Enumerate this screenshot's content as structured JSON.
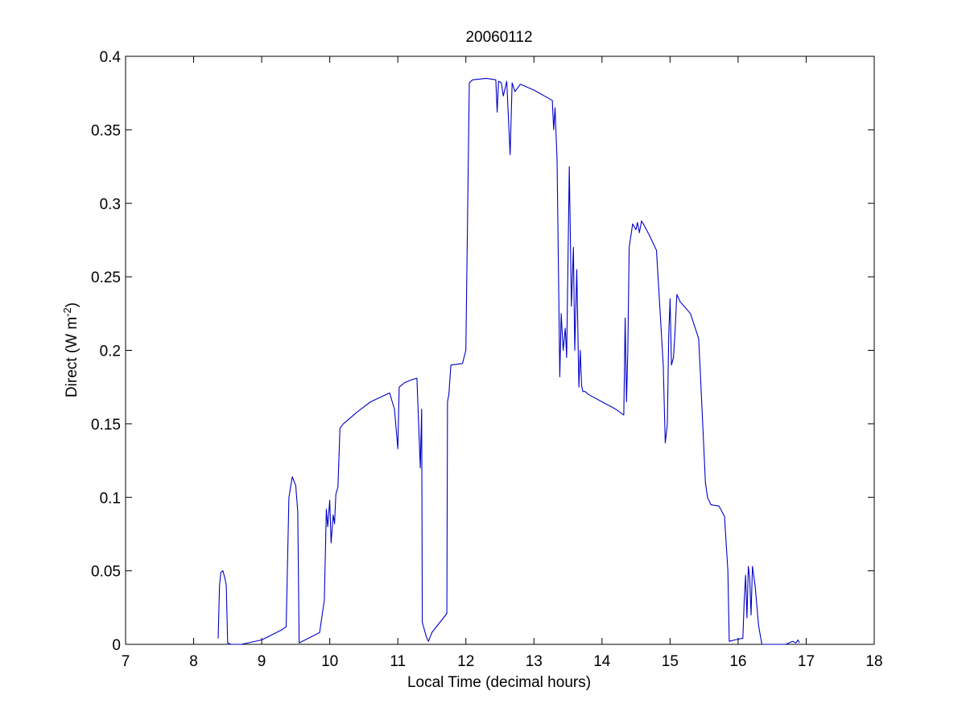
{
  "chart_data": {
    "type": "line",
    "title": "20060112",
    "xlabel": "Local Time (decimal hours)",
    "ylabel": {
      "prefix": "Direct (W m",
      "sup": "-2",
      "suffix": ")"
    },
    "xlim": [
      7,
      18
    ],
    "ylim": [
      0,
      0.4
    ],
    "x_ticks": [
      "7",
      "8",
      "9",
      "10",
      "11",
      "12",
      "13",
      "14",
      "15",
      "16",
      "17",
      "18"
    ],
    "y_ticks": [
      "0",
      "0.05",
      "0.1",
      "0.15",
      "0.2",
      "0.25",
      "0.3",
      "0.35",
      "0.4"
    ],
    "grid": false,
    "line_color": "#0000c8",
    "series": [
      {
        "x": [
          8.36,
          8.38,
          8.4,
          8.43,
          8.46,
          8.48,
          8.5,
          8.55,
          8.7,
          9.0,
          9.3,
          9.36,
          9.4,
          9.45,
          9.5,
          9.53,
          9.55,
          9.85,
          9.92,
          9.95,
          9.97,
          10.0,
          10.02,
          10.05,
          10.07,
          10.09,
          10.12,
          10.15,
          10.2,
          10.4,
          10.6,
          10.88,
          10.95,
          10.97,
          11.0,
          11.02,
          11.1,
          11.2,
          11.28,
          11.3,
          11.33,
          11.35,
          11.36,
          11.42,
          11.45,
          11.5,
          11.72,
          11.73,
          11.75,
          11.78,
          11.95,
          12.0,
          12.05,
          12.1,
          12.3,
          12.44,
          12.46,
          12.48,
          12.52,
          12.55,
          12.6,
          12.65,
          12.68,
          12.72,
          12.8,
          13.0,
          13.27,
          13.29,
          13.31,
          13.34,
          13.38,
          13.4,
          13.43,
          13.46,
          13.48,
          13.52,
          13.55,
          13.58,
          13.6,
          13.63,
          13.66,
          13.68,
          13.7,
          13.72,
          13.75,
          13.8,
          14.0,
          14.2,
          14.32,
          14.34,
          14.36,
          14.38,
          14.4,
          14.45,
          14.5,
          14.52,
          14.55,
          14.58,
          14.62,
          14.7,
          14.8,
          14.9,
          14.93,
          14.96,
          14.98,
          15.0,
          15.02,
          15.05,
          15.07,
          15.1,
          15.15,
          15.3,
          15.42,
          15.45,
          15.52,
          15.55,
          15.6,
          15.72,
          15.8,
          15.85,
          15.87,
          15.95,
          16.05,
          16.07,
          16.09,
          16.11,
          16.13,
          16.15,
          16.17,
          16.19,
          16.21,
          16.25,
          16.3,
          16.33,
          16.35,
          16.4,
          16.7,
          16.8,
          16.85,
          16.88,
          16.9
        ],
        "y": [
          0.004,
          0.04,
          0.049,
          0.05,
          0.045,
          0.04,
          0.001,
          0.0,
          0.0,
          0.003,
          0.01,
          0.012,
          0.1,
          0.114,
          0.108,
          0.09,
          0.001,
          0.008,
          0.03,
          0.092,
          0.08,
          0.098,
          0.069,
          0.088,
          0.082,
          0.102,
          0.107,
          0.147,
          0.15,
          0.158,
          0.165,
          0.171,
          0.16,
          0.15,
          0.133,
          0.175,
          0.178,
          0.18,
          0.181,
          0.158,
          0.12,
          0.16,
          0.015,
          0.005,
          0.002,
          0.008,
          0.021,
          0.165,
          0.17,
          0.19,
          0.191,
          0.2,
          0.382,
          0.384,
          0.385,
          0.384,
          0.362,
          0.383,
          0.382,
          0.373,
          0.383,
          0.333,
          0.382,
          0.376,
          0.381,
          0.377,
          0.37,
          0.35,
          0.365,
          0.33,
          0.182,
          0.225,
          0.2,
          0.215,
          0.195,
          0.325,
          0.23,
          0.27,
          0.2,
          0.255,
          0.175,
          0.2,
          0.176,
          0.172,
          0.172,
          0.17,
          0.165,
          0.16,
          0.156,
          0.222,
          0.165,
          0.2,
          0.27,
          0.286,
          0.282,
          0.287,
          0.28,
          0.288,
          0.285,
          0.278,
          0.268,
          0.19,
          0.137,
          0.15,
          0.21,
          0.235,
          0.19,
          0.195,
          0.21,
          0.238,
          0.233,
          0.225,
          0.208,
          0.18,
          0.11,
          0.1,
          0.095,
          0.094,
          0.087,
          0.05,
          0.002,
          0.003,
          0.004,
          0.004,
          0.03,
          0.047,
          0.018,
          0.053,
          0.045,
          0.02,
          0.053,
          0.04,
          0.013,
          0.005,
          0.0,
          0.0,
          0.0,
          0.002,
          0.001,
          0.003,
          0.001
        ]
      }
    ]
  }
}
